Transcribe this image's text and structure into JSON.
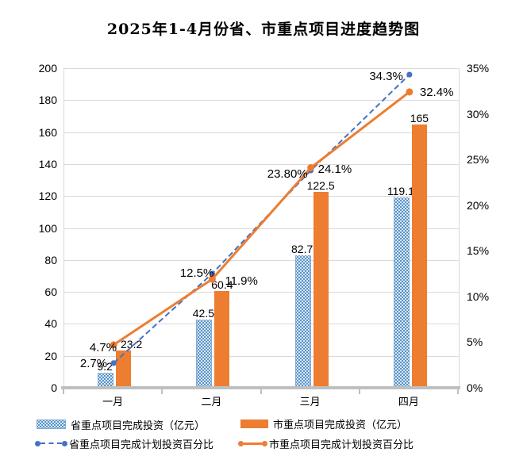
{
  "chart_data": {
    "type": "combo",
    "title": "2025年1-4月份省、市重点项目进度趋势图",
    "categories": [
      "一月",
      "二月",
      "三月",
      "四月"
    ],
    "bar_series": [
      {
        "name": "省重点项目完成投资（亿元）",
        "values": [
          9.2,
          42.5,
          82.7,
          119.1
        ],
        "labels": [
          "9.2",
          "42.5",
          "82.7",
          "119.1"
        ],
        "style": "dotted-pattern-blue"
      },
      {
        "name": "市重点项目完成投资（亿元）",
        "values": [
          23.2,
          60.4,
          122.5,
          165
        ],
        "labels": [
          "23.2",
          "60.4",
          "122.5",
          "165"
        ],
        "style": "solid-orange"
      }
    ],
    "line_series": [
      {
        "name": "省重点项目完成计划投资百分比",
        "values": [
          2.7,
          12.5,
          23.8,
          34.3
        ],
        "labels": [
          "2.7%",
          "12.5%",
          "23.80%",
          "34.3%"
        ],
        "style": "dashed-blue"
      },
      {
        "name": "市重点项目完成计划投资百分比",
        "values": [
          4.7,
          11.9,
          24.1,
          32.4
        ],
        "labels": [
          "4.7%",
          "11.9%",
          "24.1%",
          "32.4%"
        ],
        "style": "solid-orange"
      }
    ],
    "left_axis": {
      "min": 0,
      "max": 200,
      "step": 20,
      "ticks": [
        "0",
        "20",
        "40",
        "60",
        "80",
        "100",
        "120",
        "140",
        "160",
        "180",
        "200"
      ]
    },
    "right_axis": {
      "min": 0,
      "max": 35,
      "step": 5,
      "ticks": [
        "0%",
        "5%",
        "10%",
        "15%",
        "20%",
        "25%",
        "30%",
        "35%"
      ]
    },
    "grid": true,
    "legend_position": "bottom"
  },
  "colors": {
    "orange": "#ED7D31",
    "blue": "#4472C4",
    "prov_bar_fill": "#D9E8F7",
    "prov_bar_dot": "#2E75B6",
    "gridline": "#D9D9D9",
    "axis_line": "#BFBFBF"
  }
}
